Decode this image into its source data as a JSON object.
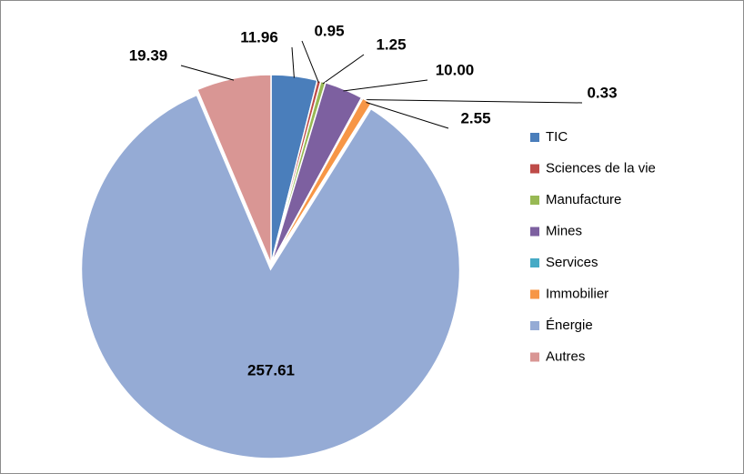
{
  "chart_data": {
    "type": "pie",
    "categories": [
      "TIC",
      "Sciences de la vie",
      "Manufacture",
      "Mines",
      "Services",
      "Immobilier",
      "Énergie",
      "Autres"
    ],
    "values": [
      11.96,
      0.95,
      1.25,
      10.0,
      0.33,
      2.55,
      257.61,
      19.39
    ],
    "value_labels": [
      "11.96",
      "0.95",
      "1.25",
      "10.00",
      "0.33",
      "2.55",
      "257.61",
      "19.39"
    ],
    "colors": [
      "#4a7ebb",
      "#be4b48",
      "#98b954",
      "#7d60a0",
      "#46aac5",
      "#f79646",
      "#95abd5",
      "#d99694"
    ],
    "exploded": [
      "Énergie"
    ],
    "legend": "right"
  }
}
